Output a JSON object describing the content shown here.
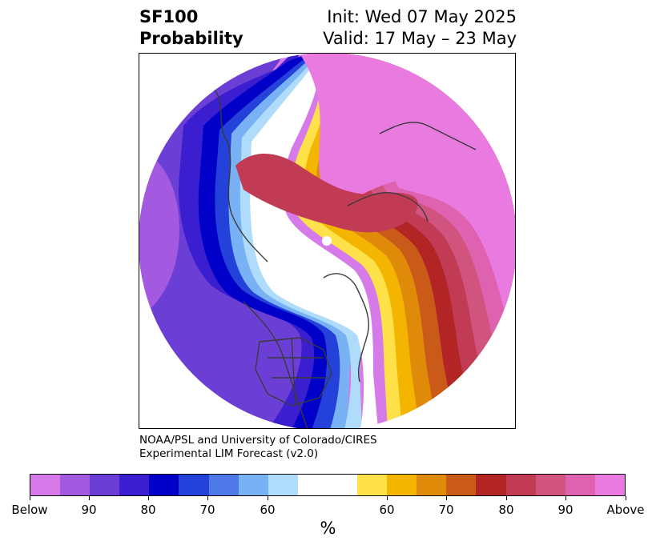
{
  "title": {
    "left_line1": "SF100",
    "left_line2": "Probability",
    "right_line1": "Init: Wed 07 May 2025",
    "right_line2": "Valid: 17 May – 23 May"
  },
  "credit": {
    "line1": "NOAA/PSL and University of Colorado/CIRES",
    "line2": "Experimental LIM Forecast (v2.0)"
  },
  "colorbar": {
    "unit": "%",
    "colors": [
      "#d67ae9",
      "#a35ae0",
      "#6b3fd6",
      "#3a1ed0",
      "#0000c8",
      "#2441d9",
      "#4f79e8",
      "#79b2f4",
      "#b0dcfb",
      "#ffffff",
      "#ffffff",
      "#ffe14a",
      "#f3b500",
      "#e08a0a",
      "#c95a18",
      "#b32525",
      "#c23b55",
      "#d0547e",
      "#de62b0",
      "#e87ae0"
    ],
    "tick_labels": [
      "Below",
      "90",
      "80",
      "70",
      "60",
      "60",
      "70",
      "80",
      "90",
      "Above"
    ]
  },
  "map": {
    "palette": {
      "above": "#e87ae0",
      "pink": "#de62b0",
      "rose": "#d0547e",
      "crimson": "#c23b55",
      "red": "#b32525",
      "rust": "#c95a18",
      "orange": "#e08a0a",
      "gold": "#f3b500",
      "yellow": "#ffe14a",
      "white": "#ffffff",
      "lightblue": "#b0dcfb",
      "skyblue": "#79b2f4",
      "blue": "#4f79e8",
      "royal": "#2441d9",
      "navy": "#0000c8",
      "indigo": "#3a1ed0",
      "violet": "#6b3fd6",
      "purple": "#a35ae0",
      "below": "#d67ae9",
      "coast": "#3a3a3a"
    }
  }
}
